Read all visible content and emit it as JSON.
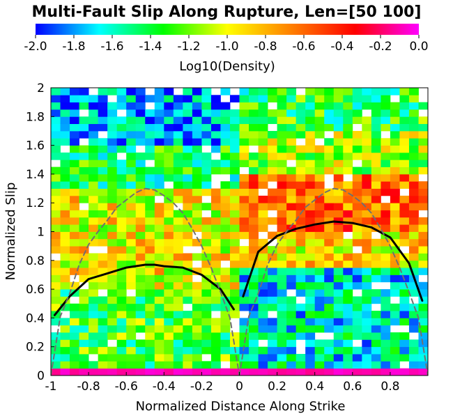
{
  "chart_data": {
    "type": "heatmap",
    "title": "Multi-Fault Slip Along Rupture, Len=[50 100]",
    "xlabel": "Normalized Distance Along Strike",
    "ylabel": "Normalized Slip",
    "xlim": [
      -1,
      1
    ],
    "ylim": [
      0,
      2
    ],
    "x_ticks": [
      "-1",
      "-0.8",
      "-0.6",
      "-0.4",
      "-0.2",
      "0",
      "0.2",
      "0.4",
      "0.6",
      "0.8"
    ],
    "x_tick_values": [
      -1,
      -0.8,
      -0.6,
      -0.4,
      -0.2,
      0,
      0.2,
      0.4,
      0.6,
      0.8
    ],
    "y_ticks": [
      "0",
      "0.2",
      "0.4",
      "0.6",
      "0.8",
      "1",
      "1.2",
      "1.4",
      "1.6",
      "1.8",
      "2"
    ],
    "y_tick_values": [
      0,
      0.2,
      0.4,
      0.6,
      0.8,
      1,
      1.2,
      1.4,
      1.6,
      1.8,
      2
    ],
    "colorbar": {
      "label": "Log10(Density)",
      "range": [
        -2,
        0
      ],
      "ticks": [
        "-2.0",
        "-1.8",
        "-1.6",
        "-1.4",
        "-1.2",
        "-1.0",
        "-0.8",
        "-0.6",
        "-0.4",
        "-0.2",
        "0.0"
      ],
      "tick_values": [
        -2,
        -1.8,
        -1.6,
        -1.4,
        -1.2,
        -1,
        -0.8,
        -0.6,
        -0.4,
        -0.2,
        0
      ],
      "colormap": [
        "#0000ff",
        "#00ffff",
        "#00ff00",
        "#ffff00",
        "#ff8000",
        "#ff0000",
        "#ff00ff"
      ]
    },
    "heatmap_grid": {
      "x_bins": 40,
      "y_bins": 40,
      "bin_width_x": 0.05,
      "bin_width_y": 0.05,
      "approx_level_by_region": [
        {
          "x": [
            -1,
            0
          ],
          "y": [
            0,
            0.05
          ],
          "log10_density": -0.1
        },
        {
          "x": [
            0,
            1
          ],
          "y": [
            0,
            0.05
          ],
          "log10_density": -0.1
        },
        {
          "x": [
            -1,
            0
          ],
          "y": [
            0.05,
            0.6
          ],
          "log10_density": -1.3
        },
        {
          "x": [
            -1,
            0
          ],
          "y": [
            0.6,
            1.3
          ],
          "log10_density": -0.95
        },
        {
          "x": [
            -1,
            0
          ],
          "y": [
            1.3,
            1.6
          ],
          "log10_density": -1.4
        },
        {
          "x": [
            -1,
            0
          ],
          "y": [
            1.6,
            2.0
          ],
          "log10_density": -1.75
        },
        {
          "x": [
            0,
            1
          ],
          "y": [
            0.05,
            0.75
          ],
          "log10_density": -1.6
        },
        {
          "x": [
            0,
            1
          ],
          "y": [
            0.75,
            1.0
          ],
          "log10_density": -0.9
        },
        {
          "x": [
            0,
            1
          ],
          "y": [
            1.0,
            1.4
          ],
          "log10_density": -0.6
        },
        {
          "x": [
            0,
            1
          ],
          "y": [
            1.4,
            1.7
          ],
          "log10_density": -1.1
        },
        {
          "x": [
            0,
            1
          ],
          "y": [
            1.7,
            2.0
          ],
          "log10_density": -1.35
        }
      ]
    },
    "series": [
      {
        "style": "solid black",
        "segments": [
          {
            "x": [
              -0.98,
              -0.9,
              -0.8,
              -0.7,
              -0.6,
              -0.5,
              -0.45,
              -0.4,
              -0.3,
              -0.2,
              -0.1,
              -0.03
            ],
            "y": [
              0.42,
              0.55,
              0.67,
              0.71,
              0.75,
              0.77,
              0.77,
              0.76,
              0.75,
              0.7,
              0.6,
              0.46
            ]
          },
          {
            "x": [
              0.02,
              0.1,
              0.2,
              0.3,
              0.4,
              0.5,
              0.6,
              0.7,
              0.8,
              0.9,
              0.97
            ],
            "y": [
              0.55,
              0.86,
              0.97,
              1.02,
              1.05,
              1.07,
              1.06,
              1.03,
              0.96,
              0.78,
              0.52
            ]
          }
        ]
      },
      {
        "style": "dashed gray",
        "segments": [
          {
            "x": [
              -1.0,
              -0.95,
              -0.9,
              -0.85,
              -0.8,
              -0.75,
              -0.7,
              -0.65,
              -0.6,
              -0.55,
              -0.5,
              -0.45,
              -0.4,
              -0.35,
              -0.3,
              -0.25,
              -0.2,
              -0.15,
              -0.1,
              -0.05,
              0.0
            ],
            "y": [
              0.0,
              0.41,
              0.57,
              0.77,
              0.91,
              1.0,
              1.08,
              1.17,
              1.22,
              1.27,
              1.3,
              1.29,
              1.25,
              1.2,
              1.13,
              1.02,
              0.9,
              0.75,
              0.58,
              0.4,
              0.0
            ]
          },
          {
            "x": [
              0.0,
              0.05,
              0.1,
              0.15,
              0.2,
              0.25,
              0.3,
              0.35,
              0.4,
              0.45,
              0.5,
              0.55,
              0.6,
              0.65,
              0.7,
              0.75,
              0.8,
              0.85,
              0.9,
              0.95,
              1.0
            ],
            "y": [
              0.0,
              0.41,
              0.57,
              0.77,
              0.91,
              1.0,
              1.08,
              1.17,
              1.22,
              1.27,
              1.3,
              1.29,
              1.25,
              1.2,
              1.13,
              1.02,
              0.9,
              0.75,
              0.58,
              0.4,
              0.0
            ]
          }
        ]
      }
    ]
  }
}
